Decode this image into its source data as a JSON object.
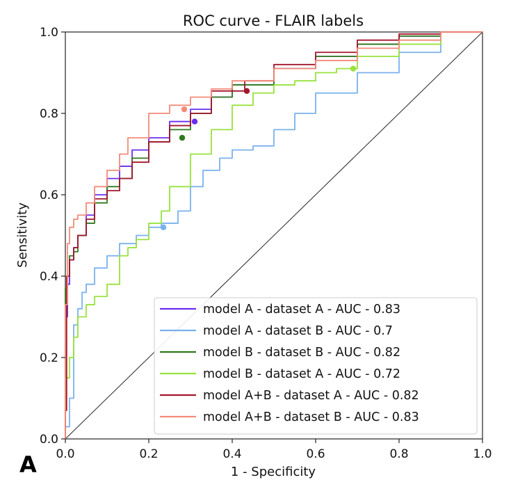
{
  "panel_label": "A",
  "chart_data": {
    "type": "line",
    "title": "ROC curve - FLAIR labels",
    "xlabel": "1 - Specificity",
    "ylabel": "Sensitivity",
    "xlim": [
      0,
      1
    ],
    "ylim": [
      0,
      1
    ],
    "xticks": [
      "0.0",
      "0.2",
      "0.4",
      "0.6",
      "0.8",
      "1.0"
    ],
    "yticks": [
      "0.0",
      "0.2",
      "0.4",
      "0.6",
      "0.8",
      "1.0"
    ],
    "grid": false,
    "legend_position": "lower-right",
    "diagonal": {
      "x": [
        0,
        1
      ],
      "y": [
        0,
        1
      ],
      "color": "#222222"
    },
    "series": [
      {
        "name": "model A - dataset A - AUC - 0.83",
        "color": "#6a2cf0",
        "x": [
          0,
          0.005,
          0.01,
          0.02,
          0.03,
          0.05,
          0.07,
          0.1,
          0.13,
          0.16,
          0.2,
          0.25,
          0.3,
          0.35,
          0.4,
          0.5,
          0.6,
          0.7,
          0.8,
          0.9,
          1.0
        ],
        "y": [
          0,
          0.3,
          0.38,
          0.44,
          0.47,
          0.5,
          0.55,
          0.6,
          0.64,
          0.67,
          0.71,
          0.74,
          0.78,
          0.81,
          0.84,
          0.87,
          0.91,
          0.94,
          0.97,
          0.99,
          1.0
        ],
        "marker": [
          0.31,
          0.78
        ]
      },
      {
        "name": "model A - dataset B - AUC - 0.7",
        "color": "#7ab1ee",
        "x": [
          0,
          0.01,
          0.02,
          0.03,
          0.04,
          0.05,
          0.07,
          0.1,
          0.13,
          0.17,
          0.2,
          0.23,
          0.27,
          0.3,
          0.33,
          0.37,
          0.4,
          0.45,
          0.5,
          0.55,
          0.6,
          0.7,
          0.8,
          0.9,
          1.0
        ],
        "y": [
          0,
          0.03,
          0.1,
          0.28,
          0.32,
          0.36,
          0.38,
          0.42,
          0.45,
          0.48,
          0.5,
          0.52,
          0.53,
          0.56,
          0.62,
          0.66,
          0.69,
          0.71,
          0.72,
          0.76,
          0.8,
          0.85,
          0.9,
          0.95,
          1.0
        ],
        "marker": [
          0.235,
          0.52
        ]
      },
      {
        "name": "model B - dataset B - AUC - 0.82",
        "color": "#2f7a1c",
        "x": [
          0,
          0.005,
          0.01,
          0.02,
          0.03,
          0.05,
          0.07,
          0.1,
          0.13,
          0.16,
          0.2,
          0.25,
          0.3,
          0.35,
          0.4,
          0.5,
          0.6,
          0.7,
          0.8,
          0.9,
          1.0
        ],
        "y": [
          0,
          0.37,
          0.4,
          0.45,
          0.46,
          0.5,
          0.53,
          0.58,
          0.62,
          0.64,
          0.69,
          0.73,
          0.76,
          0.8,
          0.84,
          0.87,
          0.91,
          0.94,
          0.97,
          0.99,
          1.0
        ],
        "marker": [
          0.28,
          0.74
        ]
      },
      {
        "name": "model B - dataset A - AUC - 0.72",
        "color": "#98e23c",
        "x": [
          0,
          0.01,
          0.02,
          0.03,
          0.05,
          0.07,
          0.1,
          0.13,
          0.15,
          0.17,
          0.2,
          0.23,
          0.25,
          0.3,
          0.35,
          0.4,
          0.45,
          0.5,
          0.55,
          0.6,
          0.65,
          0.7,
          0.8,
          0.9,
          1.0
        ],
        "y": [
          0,
          0.15,
          0.2,
          0.25,
          0.3,
          0.33,
          0.35,
          0.38,
          0.45,
          0.47,
          0.49,
          0.53,
          0.56,
          0.62,
          0.7,
          0.76,
          0.82,
          0.85,
          0.87,
          0.88,
          0.9,
          0.91,
          0.94,
          0.97,
          1.0
        ],
        "marker": [
          0.69,
          0.91
        ]
      },
      {
        "name": "model A+B - dataset A - AUC - 0.82",
        "color": "#a2162c",
        "x": [
          0,
          0.003,
          0.01,
          0.02,
          0.03,
          0.05,
          0.07,
          0.1,
          0.13,
          0.16,
          0.2,
          0.25,
          0.3,
          0.35,
          0.43,
          0.5,
          0.6,
          0.7,
          0.8,
          0.9,
          1.0
        ],
        "y": [
          0,
          0.07,
          0.4,
          0.44,
          0.47,
          0.5,
          0.54,
          0.59,
          0.61,
          0.64,
          0.68,
          0.73,
          0.77,
          0.8,
          0.855,
          0.88,
          0.92,
          0.95,
          0.98,
          0.995,
          1.0
        ],
        "marker": [
          0.435,
          0.855
        ]
      },
      {
        "name": "model A+B - dataset B - AUC - 0.83",
        "color": "#f48a7a",
        "x": [
          0,
          0.005,
          0.01,
          0.02,
          0.03,
          0.05,
          0.07,
          0.1,
          0.13,
          0.15,
          0.2,
          0.25,
          0.3,
          0.35,
          0.4,
          0.5,
          0.6,
          0.7,
          0.8,
          0.9,
          1.0
        ],
        "y": [
          0,
          0.33,
          0.48,
          0.52,
          0.54,
          0.55,
          0.58,
          0.62,
          0.66,
          0.7,
          0.74,
          0.8,
          0.82,
          0.84,
          0.86,
          0.88,
          0.91,
          0.93,
          0.96,
          0.98,
          1.0
        ],
        "marker": [
          0.285,
          0.81
        ]
      }
    ]
  }
}
